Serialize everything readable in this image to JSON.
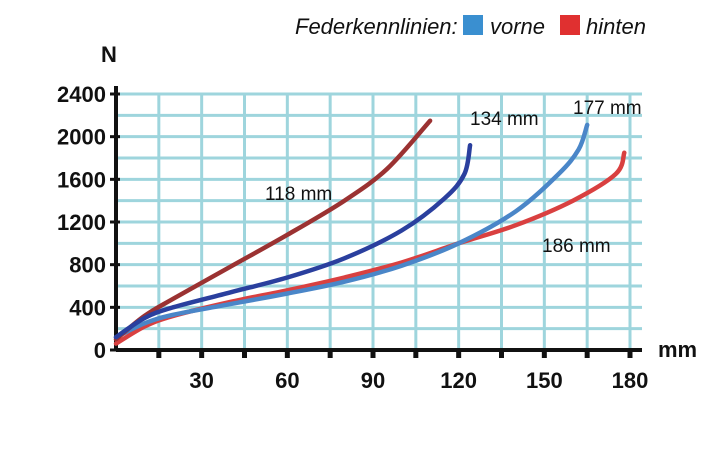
{
  "legend": {
    "title": "Federkennlinien:",
    "items": [
      {
        "label": "vorne",
        "color": "#3a8fd0"
      },
      {
        "label": "hinten",
        "color": "#e03030"
      }
    ]
  },
  "chart_data": {
    "type": "line",
    "xlabel": "mm",
    "ylabel": "N",
    "xlim": [
      0,
      180
    ],
    "ylim": [
      0,
      2400
    ],
    "x_ticks": [
      30,
      60,
      90,
      120,
      150,
      180
    ],
    "x_tick_labels": [
      "30",
      "60",
      "90",
      "120",
      "150",
      "180"
    ],
    "y_ticks": [
      0,
      400,
      800,
      1200,
      1600,
      2000,
      2400
    ],
    "y_tick_labels": [
      "0",
      "400",
      "800",
      "1200",
      "1600",
      "2000",
      "2400"
    ],
    "grid": true,
    "legend_position": "top-right",
    "series": [
      {
        "label": "118 mm",
        "color": "#9b3232",
        "x": [
          0,
          10,
          20,
          40,
          60,
          80,
          95,
          110
        ],
        "y": [
          100,
          320,
          480,
          780,
          1080,
          1400,
          1700,
          2150
        ]
      },
      {
        "label": "134 mm",
        "color": "#2a3f9e",
        "x": [
          0,
          10,
          20,
          40,
          60,
          80,
          100,
          115,
          122,
          124
        ],
        "y": [
          120,
          300,
          400,
          540,
          680,
          860,
          1120,
          1420,
          1650,
          1920
        ]
      },
      {
        "label": "177 mm",
        "color": "#4a86c8",
        "x": [
          0,
          10,
          20,
          40,
          60,
          80,
          100,
          120,
          140,
          155,
          162,
          165
        ],
        "y": [
          120,
          250,
          330,
          430,
          530,
          640,
          790,
          1000,
          1300,
          1650,
          1880,
          2110
        ]
      },
      {
        "label": "186 mm",
        "color": "#d94040",
        "x": [
          0,
          10,
          20,
          40,
          60,
          80,
          100,
          120,
          140,
          160,
          175,
          178
        ],
        "y": [
          60,
          220,
          320,
          450,
          560,
          680,
          820,
          1000,
          1170,
          1400,
          1650,
          1850
        ]
      }
    ]
  }
}
